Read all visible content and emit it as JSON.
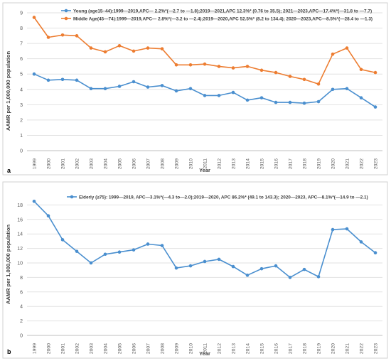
{
  "chart_data": [
    {
      "type": "line",
      "panel_label": "a",
      "title": "",
      "xlabel": "Year",
      "ylabel": "AAMR per 1,000,000 population",
      "ylim": [
        0,
        9
      ],
      "yticks": [
        0,
        1,
        2,
        3,
        4,
        5,
        6,
        7,
        8,
        9
      ],
      "grid": "horizontal",
      "legend_position": "top-left",
      "categories": [
        "1999",
        "2000",
        "2001",
        "2002",
        "2003",
        "2004",
        "2005",
        "2006",
        "2007",
        "2008",
        "2009",
        "2010",
        "2011",
        "2012",
        "2013",
        "2014",
        "2015",
        "2016",
        "2017",
        "2018",
        "2019",
        "2020",
        "2021",
        "2022",
        "2023"
      ],
      "series": [
        {
          "name": "Young (age15–44):1999—2019,APC— 2.2%*(—2.7 to —1.8);2019—2021,APC 12.3%* (0.76 to 35.5); 2021—2023,APC—17.4%*(—31.8 to —7.7)",
          "color": "#4a8fcf",
          "values": [
            5.0,
            4.6,
            4.65,
            4.6,
            4.05,
            4.05,
            4.2,
            4.5,
            4.15,
            4.25,
            3.9,
            4.05,
            3.6,
            3.6,
            3.8,
            3.3,
            3.45,
            3.15,
            3.15,
            3.1,
            3.2,
            4.0,
            4.05,
            3.45,
            2.85
          ]
        },
        {
          "name": "Middle Age(45—74):1999—2019,APC— 2.8%*(—3.2 to —2.4);2019—2020,APC 52.5%* (8.2 to 134.4); 2020—2023,APC—8.5%*(—28.4 to —1.3)",
          "color": "#ed7d31",
          "values": [
            8.7,
            7.4,
            7.55,
            7.5,
            6.7,
            6.45,
            6.85,
            6.5,
            6.7,
            6.65,
            5.6,
            5.6,
            5.65,
            5.5,
            5.4,
            5.5,
            5.25,
            5.1,
            4.85,
            4.65,
            4.35,
            6.3,
            6.7,
            5.3,
            5.1
          ]
        }
      ]
    },
    {
      "type": "line",
      "panel_label": "b",
      "title": "",
      "xlabel": "Year",
      "ylabel": "AAMR per 1,000,000 population",
      "ylim": [
        0,
        20
      ],
      "yticks": [
        0,
        2,
        4,
        6,
        8,
        10,
        12,
        14,
        16,
        18
      ],
      "grid": "horizontal",
      "legend_position": "top-center",
      "categories": [
        "1999",
        "2000",
        "2001",
        "2002",
        "2003",
        "2004",
        "2005",
        "2006",
        "2007",
        "2008",
        "2009",
        "2010",
        "2011",
        "2012",
        "2013",
        "2014",
        "2015",
        "2016",
        "2017",
        "2018",
        "2019",
        "2020",
        "2021",
        "2022",
        "2023"
      ],
      "series": [
        {
          "name": "Elderly (≥75): 1999—2019, APC—3.1%*(—4.3 to—2.0);2019—2020, APC 86.2%* (49.1 to 143.3); 2020—2023, APC—8.1%*(—14.9 to —2.1)",
          "color": "#4a8fcf",
          "values": [
            18.5,
            16.5,
            13.2,
            11.6,
            10.0,
            11.2,
            11.5,
            11.8,
            12.6,
            12.4,
            9.3,
            9.6,
            10.2,
            10.5,
            9.5,
            8.3,
            9.2,
            9.6,
            8.0,
            9.1,
            8.1,
            14.6,
            14.7,
            12.9,
            11.4
          ]
        }
      ]
    }
  ]
}
